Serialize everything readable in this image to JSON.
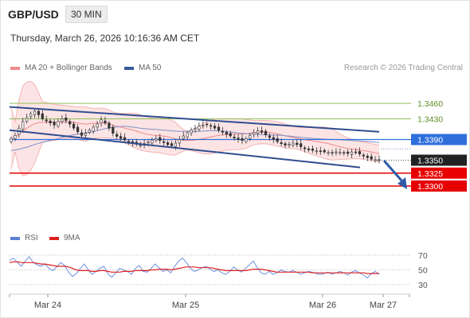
{
  "header": {
    "symbol": "GBP/USD",
    "timeframe": "30 MIN",
    "timestamp": "Thursday, March 26, 2026 10:16:36 AM CET"
  },
  "legend": {
    "main": [
      {
        "name": "MA 20 + Bollinger Bands",
        "color": "#f08a8a"
      },
      {
        "name": "MA 50",
        "color": "#3a5a9c"
      }
    ],
    "rsi": [
      {
        "name": "RSI",
        "color": "#5b7fd4"
      },
      {
        "name": "9MA",
        "color": "#e02020"
      }
    ],
    "credit": "Research © 2026 Trading Central"
  },
  "chart_data": [
    {
      "type": "line",
      "title": "GBP/USD",
      "x_labels": [
        "Mar 24",
        "Mar 25",
        "Mar 26",
        "Mar 27"
      ],
      "levels": [
        {
          "value": 1.346,
          "label": "1.3460",
          "style": "resistance",
          "color": "#8fbf5a"
        },
        {
          "value": 1.343,
          "label": "1.3430",
          "style": "resistance",
          "color": "#8fbf5a"
        },
        {
          "value": 1.339,
          "label": "1.3390",
          "style": "pivot",
          "color": "#2f6fdb"
        },
        {
          "value": 1.335,
          "label": "1.3350",
          "style": "last",
          "color": "#222222"
        },
        {
          "value": 1.3325,
          "label": "1.3325",
          "style": "target",
          "color": "#e60000"
        },
        {
          "value": 1.33,
          "label": "1.3300",
          "style": "target",
          "color": "#e60000"
        }
      ],
      "channel": {
        "upper": {
          "start": 1.3453,
          "end": 1.3405
        },
        "lower": {
          "start": 1.3408,
          "end": 1.3336
        }
      },
      "series": [
        {
          "name": "MA 20 + Bollinger Bands",
          "color": "#f08a8a"
        },
        {
          "name": "MA 50",
          "color": "#3a5a9c"
        }
      ],
      "candles_close": [
        1.3392,
        1.3398,
        1.3412,
        1.3425,
        1.3432,
        1.344,
        1.3445,
        1.3438,
        1.343,
        1.3426,
        1.3422,
        1.3418,
        1.3425,
        1.343,
        1.3427,
        1.342,
        1.3412,
        1.3405,
        1.3398,
        1.3402,
        1.3408,
        1.3414,
        1.342,
        1.3428,
        1.3422,
        1.3412,
        1.3402,
        1.3396,
        1.3392,
        1.3389,
        1.3386,
        1.3383,
        1.3381,
        1.3379,
        1.3382,
        1.3385,
        1.3389,
        1.3392,
        1.3388,
        1.3384,
        1.338,
        1.3378,
        1.3383,
        1.339,
        1.3397,
        1.3403,
        1.3408,
        1.3412,
        1.3416,
        1.3418,
        1.3419,
        1.3416,
        1.3412,
        1.3408,
        1.3404,
        1.34,
        1.3397,
        1.3393,
        1.339,
        1.3388,
        1.3392,
        1.3398,
        1.3404,
        1.3407,
        1.3404,
        1.3399,
        1.3394,
        1.339,
        1.3386,
        1.3382,
        1.3379,
        1.3381,
        1.3383,
        1.338,
        1.3376,
        1.3372,
        1.337,
        1.3369,
        1.3368,
        1.3367,
        1.3366,
        1.3365,
        1.3364,
        1.3366,
        1.3365,
        1.3364,
        1.3363,
        1.3366,
        1.3365,
        1.3362,
        1.3358,
        1.3355,
        1.3352,
        1.3351,
        1.335
      ],
      "rsi": {
        "ticks": [
          30,
          50,
          70
        ],
        "ylim": [
          20,
          80
        ],
        "values": [
          63,
          66,
          60,
          55,
          62,
          68,
          60,
          57,
          55,
          58,
          52,
          49,
          54,
          60,
          56,
          47,
          41,
          45,
          52,
          58,
          50,
          44,
          48,
          52,
          55,
          45,
          40,
          46,
          52,
          50,
          48,
          44,
          52,
          56,
          48,
          47,
          52,
          58,
          53,
          48,
          50,
          46,
          55,
          62,
          66,
          60,
          52,
          48,
          50,
          53,
          55,
          51,
          48,
          50,
          46,
          44,
          48,
          54,
          50,
          47,
          52,
          57,
          62,
          53,
          46,
          44,
          48,
          44,
          46,
          50,
          48,
          47,
          49,
          47,
          44,
          46,
          48,
          47,
          45,
          44,
          45,
          47,
          44,
          46,
          48,
          46,
          43,
          47,
          49,
          46,
          43,
          39,
          45,
          48,
          44
        ],
        "ma9": [
          60,
          61,
          61,
          60,
          60,
          60,
          60,
          59,
          58,
          58,
          57,
          56,
          55,
          55,
          55,
          54,
          52,
          50,
          49,
          49,
          49,
          48,
          48,
          49,
          49,
          48,
          47,
          47,
          47,
          48,
          48,
          48,
          49,
          49,
          49,
          49,
          50,
          50,
          51,
          51,
          51,
          50,
          51,
          52,
          53,
          54,
          54,
          54,
          53,
          53,
          53,
          53,
          52,
          51,
          50,
          49,
          49,
          49,
          49,
          49,
          49,
          50,
          51,
          51,
          51,
          50,
          49,
          48,
          47,
          47,
          47,
          47,
          47,
          47,
          47,
          47,
          47,
          46,
          46,
          46,
          46,
          46,
          46,
          46,
          46,
          46,
          46,
          46,
          46,
          46,
          46,
          45,
          45,
          45,
          45
        ]
      }
    }
  ]
}
